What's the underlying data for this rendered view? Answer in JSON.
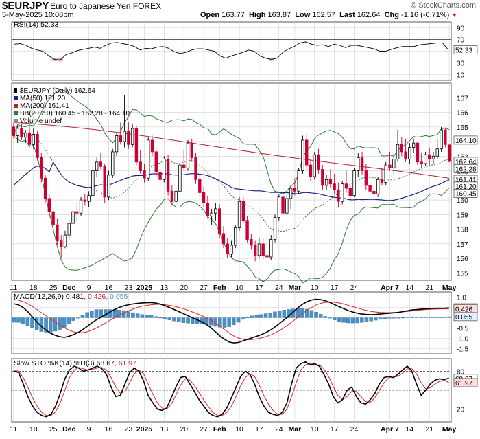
{
  "header": {
    "symbol": "$EURJPY",
    "name": "Euro to Japanese Yen FOREX",
    "date": "5-May-2025 10:08pm",
    "brand": "© StockCharts.com",
    "open_label": "Open",
    "open": "163.77",
    "high_label": "High",
    "high": "163.87",
    "low_label": "Low",
    "low": "162.57",
    "last_label": "Last",
    "last": "162.64",
    "chg_label": "Chg",
    "chg": "-1.16 (-0.71%)",
    "chg_icon": "down-triangle-icon"
  },
  "colors": {
    "up": "#000000",
    "down": "#cc0033",
    "ma50": "#1a237e",
    "ma200": "#b0243a",
    "bb": "#2e7d32",
    "macd_hist": "#4a90c4",
    "signal": "#e02020",
    "grid": "#cfcfcf"
  },
  "chart_data": [
    {
      "type": "line",
      "title": "RSI(14) 52.33",
      "ylim": [
        0,
        100
      ],
      "ticks": [
        90,
        70,
        50,
        30,
        10
      ],
      "reference_lines": [
        70,
        30
      ],
      "last_value": "52.33",
      "series": [
        {
          "values": [
            62,
            63,
            60,
            55,
            52,
            50,
            42,
            36,
            35,
            44,
            47,
            51,
            53,
            55,
            57,
            55,
            60,
            64,
            65,
            63,
            61,
            58,
            52,
            55,
            54,
            57,
            58,
            55,
            49,
            46,
            48,
            52,
            54,
            54,
            52,
            50,
            42,
            38,
            42,
            45,
            48,
            52,
            50,
            42,
            38,
            36,
            38,
            48,
            54,
            58,
            64,
            66,
            62,
            60,
            61,
            58,
            62,
            60,
            56,
            60,
            60,
            58,
            56,
            54,
            50,
            50,
            53,
            56,
            58,
            58,
            58,
            61,
            62,
            63,
            64,
            64,
            52
          ]
        }
      ]
    },
    {
      "type": "candlestick",
      "title": "$EURJPY (Daily) 162.64",
      "legend": [
        "MA(50) 161.20",
        "MA(200) 161.41",
        "BB(20,2.0) 160.45 - 162.28 - 164.10",
        "Volume undef"
      ],
      "x_tick_labels": [
        "11",
        "18",
        "25",
        "Dec",
        "9",
        "16",
        "23",
        "2025",
        "13",
        "20",
        "27",
        "Feb",
        "10",
        "17",
        "24",
        "Mar",
        "10",
        "17",
        "24",
        "Apr 7",
        "14",
        "21",
        "May"
      ],
      "x_tick_index": [
        0,
        5,
        10,
        14,
        19,
        24,
        29,
        33,
        38,
        43,
        48,
        52,
        57,
        62,
        67,
        71,
        76,
        81,
        86,
        95,
        100,
        105,
        110
      ],
      "ylim": [
        154.5,
        168
      ],
      "ticks": [
        155,
        156,
        157,
        158,
        159,
        160,
        161,
        162,
        163,
        164,
        165,
        166,
        167
      ],
      "price_labels": {
        "bb_upper": "164.10",
        "last": "162.64",
        "bb_mid": "162.28",
        "ma200": "161.41",
        "ma50": "161.20",
        "bb_lower": "160.45"
      },
      "ohlc": [
        [
          165.0,
          165.3,
          164.2,
          164.4
        ],
        [
          164.4,
          165.1,
          163.9,
          164.9
        ],
        [
          164.9,
          165.2,
          164.1,
          164.3
        ],
        [
          164.3,
          164.8,
          163.9,
          164.6
        ],
        [
          164.6,
          165.0,
          163.6,
          163.8
        ],
        [
          163.8,
          164.9,
          163.5,
          164.5
        ],
        [
          164.5,
          164.7,
          162.7,
          162.9
        ],
        [
          162.9,
          163.2,
          161.2,
          161.5
        ],
        [
          161.5,
          161.7,
          159.8,
          160.1
        ],
        [
          160.1,
          160.4,
          158.8,
          159.2
        ],
        [
          159.2,
          159.5,
          157.9,
          158.3
        ],
        [
          158.3,
          158.7,
          156.9,
          157.2
        ],
        [
          157.2,
          157.6,
          156.0,
          156.8
        ],
        [
          156.8,
          157.9,
          156.7,
          157.6
        ],
        [
          157.6,
          158.6,
          157.3,
          158.4
        ],
        [
          158.4,
          159.4,
          158.2,
          159.2
        ],
        [
          159.2,
          159.8,
          158.6,
          159.1
        ],
        [
          159.1,
          160.2,
          158.9,
          160.0
        ],
        [
          160.0,
          160.4,
          159.6,
          159.9
        ],
        [
          159.9,
          160.6,
          159.5,
          160.3
        ],
        [
          160.3,
          162.3,
          160.1,
          162.0
        ],
        [
          162.0,
          162.9,
          161.6,
          162.6
        ],
        [
          162.6,
          163.2,
          162.1,
          162.3
        ],
        [
          162.3,
          162.5,
          159.8,
          160.2
        ],
        [
          160.2,
          162.0,
          160.0,
          161.7
        ],
        [
          161.7,
          163.5,
          161.5,
          163.3
        ],
        [
          163.3,
          164.6,
          163.0,
          164.4
        ],
        [
          164.4,
          165.3,
          163.8,
          164.0
        ],
        [
          164.0,
          167.2,
          163.6,
          164.7
        ],
        [
          164.7,
          165.3,
          163.5,
          163.8
        ],
        [
          163.8,
          165.2,
          163.6,
          164.9
        ],
        [
          164.9,
          165.1,
          162.4,
          162.6
        ],
        [
          162.6,
          163.4,
          161.8,
          162.0
        ],
        [
          162.0,
          162.5,
          161.2,
          161.5
        ],
        [
          161.5,
          164.3,
          161.3,
          164.1
        ],
        [
          164.1,
          164.4,
          163.0,
          163.3
        ],
        [
          163.3,
          163.5,
          161.6,
          161.9
        ],
        [
          161.9,
          162.4,
          161.1,
          161.4
        ],
        [
          161.4,
          163.0,
          161.2,
          162.8
        ],
        [
          162.8,
          163.1,
          160.3,
          160.6
        ],
        [
          160.6,
          161.0,
          159.6,
          159.9
        ],
        [
          159.9,
          160.8,
          159.7,
          160.6
        ],
        [
          160.6,
          162.6,
          160.4,
          162.4
        ],
        [
          162.4,
          163.4,
          162.0,
          162.2
        ],
        [
          162.2,
          164.1,
          162.0,
          163.9
        ],
        [
          163.9,
          164.2,
          162.6,
          162.9
        ],
        [
          162.9,
          163.2,
          161.1,
          161.4
        ],
        [
          161.4,
          161.7,
          160.2,
          160.5
        ],
        [
          160.5,
          160.9,
          159.5,
          159.8
        ],
        [
          159.8,
          160.3,
          158.7,
          158.9
        ],
        [
          158.9,
          159.4,
          158.3,
          159.1
        ],
        [
          159.1,
          159.8,
          158.6,
          159.4
        ],
        [
          159.4,
          159.7,
          157.4,
          157.7
        ],
        [
          157.7,
          158.2,
          156.7,
          157.0
        ],
        [
          157.0,
          157.4,
          156.0,
          156.3
        ],
        [
          156.3,
          157.2,
          156.1,
          156.9
        ],
        [
          156.9,
          158.3,
          156.7,
          158.1
        ],
        [
          158.1,
          160.2,
          157.9,
          159.9
        ],
        [
          159.9,
          160.2,
          158.4,
          158.6
        ],
        [
          158.6,
          158.9,
          157.1,
          157.3
        ],
        [
          157.3,
          157.7,
          156.6,
          156.9
        ],
        [
          156.9,
          157.2,
          155.8,
          156.2
        ],
        [
          156.2,
          157.4,
          156.0,
          157.0
        ],
        [
          157.0,
          157.4,
          155.9,
          156.2
        ],
        [
          156.2,
          156.8,
          155.0,
          156.1
        ],
        [
          156.1,
          157.6,
          155.9,
          157.3
        ],
        [
          157.3,
          159.0,
          157.1,
          158.8
        ],
        [
          158.8,
          160.4,
          158.6,
          160.2
        ],
        [
          160.2,
          160.6,
          158.8,
          159.1
        ],
        [
          159.1,
          160.4,
          158.9,
          160.1
        ],
        [
          160.1,
          161.0,
          159.4,
          160.8
        ],
        [
          160.8,
          161.5,
          160.3,
          160.6
        ],
        [
          160.6,
          162.2,
          160.4,
          162.0
        ],
        [
          162.0,
          164.4,
          161.8,
          164.1
        ],
        [
          164.1,
          164.5,
          162.1,
          162.4
        ],
        [
          162.4,
          162.8,
          161.3,
          161.6
        ],
        [
          161.6,
          163.3,
          161.4,
          163.1
        ],
        [
          163.1,
          163.5,
          161.8,
          162.1
        ],
        [
          162.1,
          162.4,
          160.7,
          161.0
        ],
        [
          161.0,
          161.7,
          160.7,
          161.4
        ],
        [
          161.4,
          162.1,
          160.8,
          161.1
        ],
        [
          161.1,
          161.8,
          160.4,
          160.7
        ],
        [
          160.7,
          161.2,
          159.5,
          159.9
        ],
        [
          159.9,
          161.3,
          159.7,
          161.1
        ],
        [
          161.1,
          162.0,
          160.5,
          160.8
        ],
        [
          160.8,
          161.0,
          160.0,
          160.3
        ],
        [
          160.3,
          162.2,
          160.2,
          162.0
        ],
        [
          162.0,
          163.2,
          161.6,
          162.9
        ],
        [
          162.9,
          163.3,
          161.7,
          162.0
        ],
        [
          162.0,
          162.5,
          160.7,
          161.0
        ],
        [
          161.0,
          161.5,
          160.2,
          160.6
        ],
        [
          160.6,
          161.0,
          159.7,
          160.4
        ],
        [
          160.4,
          161.6,
          160.2,
          161.4
        ],
        [
          161.4,
          162.2,
          161.0,
          161.2
        ],
        [
          161.2,
          162.6,
          161.0,
          162.4
        ],
        [
          162.4,
          163.3,
          162.0,
          162.2
        ],
        [
          162.2,
          163.1,
          161.8,
          162.8
        ],
        [
          162.8,
          164.8,
          162.6,
          163.8
        ],
        [
          163.8,
          164.3,
          163.0,
          163.3
        ],
        [
          163.3,
          164.2,
          162.6,
          162.8
        ],
        [
          162.8,
          163.9,
          162.5,
          163.6
        ],
        [
          163.6,
          164.2,
          163.2,
          163.9
        ],
        [
          163.9,
          164.0,
          162.4,
          162.6
        ],
        [
          162.6,
          163.2,
          162.2,
          162.5
        ],
        [
          162.5,
          163.3,
          162.3,
          163.1
        ],
        [
          163.1,
          163.6,
          162.4,
          162.8
        ],
        [
          162.8,
          163.3,
          162.5,
          163.0
        ],
        [
          163.0,
          164.2,
          162.8,
          163.5
        ],
        [
          163.5,
          165.0,
          163.3,
          164.8
        ],
        [
          164.8,
          164.9,
          163.6,
          163.8
        ],
        [
          163.77,
          163.87,
          162.57,
          162.64
        ]
      ]
    },
    {
      "type": "histogram+line",
      "title": "MACD(12,26,9) 0.481, 0.426, 0.055",
      "values_text": {
        "macd": "0.481",
        "signal": "0.426",
        "hist": "0.055"
      },
      "ylim": [
        -1.75,
        1.25
      ],
      "ticks": [
        "1.0",
        "0.5",
        "0.0",
        "-0.5",
        "-1.0",
        "-1.5"
      ],
      "macd": [
        0.68,
        0.62,
        0.5,
        0.3,
        0.05,
        -0.2,
        -0.42,
        -0.6,
        -0.75,
        -0.85,
        -0.92,
        -0.95,
        -0.9,
        -0.82,
        -0.72,
        -0.58,
        -0.42,
        -0.25,
        -0.1,
        0.02,
        0.15,
        0.28,
        0.4,
        0.5,
        0.58,
        0.63,
        0.67,
        0.7,
        0.72,
        0.73,
        0.74,
        0.71,
        0.66,
        0.58,
        0.49,
        0.4,
        0.3,
        0.2,
        0.1,
        0.0,
        -0.1,
        -0.2,
        -0.32,
        -0.48,
        -0.68,
        -0.88,
        -1.05,
        -1.18,
        -1.22,
        -1.2,
        -1.12,
        -1.05,
        -0.97,
        -0.9,
        -0.82,
        -0.72,
        -0.6,
        -0.45,
        -0.28,
        -0.1,
        0.08,
        0.28,
        0.48,
        0.65,
        0.78,
        0.86,
        0.9,
        0.88,
        0.82,
        0.74,
        0.64,
        0.54,
        0.44,
        0.35,
        0.28,
        0.22,
        0.18,
        0.16,
        0.15,
        0.16,
        0.18,
        0.2,
        0.22,
        0.24,
        0.26,
        0.3,
        0.34,
        0.38,
        0.4,
        0.42,
        0.44,
        0.45,
        0.46,
        0.46,
        0.46,
        0.48
      ],
      "signal": [
        0.9,
        0.85,
        0.78,
        0.68,
        0.55,
        0.4,
        0.25,
        0.1,
        -0.05,
        -0.2,
        -0.35,
        -0.48,
        -0.6,
        -0.68,
        -0.72,
        -0.72,
        -0.68,
        -0.6,
        -0.5,
        -0.38,
        -0.25,
        -0.12,
        0.0,
        0.12,
        0.23,
        0.33,
        0.42,
        0.5,
        0.56,
        0.6,
        0.63,
        0.65,
        0.65,
        0.63,
        0.6,
        0.56,
        0.5,
        0.44,
        0.36,
        0.28,
        0.2,
        0.1,
        0.0,
        -0.12,
        -0.26,
        -0.42,
        -0.58,
        -0.74,
        -0.88,
        -0.98,
        -1.04,
        -1.07,
        -1.06,
        -1.03,
        -0.98,
        -0.92,
        -0.84,
        -0.74,
        -0.62,
        -0.48,
        -0.32,
        -0.15,
        0.02,
        0.2,
        0.36,
        0.5,
        0.62,
        0.7,
        0.75,
        0.76,
        0.75,
        0.72,
        0.67,
        0.6,
        0.54,
        0.47,
        0.41,
        0.36,
        0.31,
        0.28,
        0.26,
        0.25,
        0.25,
        0.26,
        0.27,
        0.29,
        0.31,
        0.33,
        0.36,
        0.38,
        0.4,
        0.41,
        0.42,
        0.43,
        0.43,
        0.43
      ]
    },
    {
      "type": "line",
      "title": "Slow STO %K(14) %D(3) 68.67, 61.97",
      "values_text": {
        "k": "68.67",
        "d": "61.97"
      },
      "ylim": [
        0,
        100
      ],
      "ticks": [
        80,
        50,
        20
      ],
      "reference_lines": [
        80,
        50,
        20
      ],
      "k": [
        80,
        78,
        60,
        40,
        25,
        15,
        10,
        8,
        12,
        25,
        45,
        68,
        82,
        88,
        85,
        80,
        82,
        85,
        88,
        84,
        75,
        55,
        40,
        42,
        60,
        78,
        85,
        80,
        65,
        42,
        30,
        20,
        18,
        22,
        38,
        55,
        70,
        72,
        60,
        48,
        35,
        25,
        15,
        10,
        8,
        12,
        22,
        38,
        55,
        72,
        80,
        75,
        60,
        40,
        25,
        15,
        12,
        10,
        15,
        30,
        60,
        85,
        92,
        95,
        90,
        92,
        88,
        75,
        60,
        40,
        30,
        35,
        50,
        55,
        40,
        30,
        28,
        35,
        45,
        60,
        70,
        72,
        70,
        75,
        82,
        88,
        80,
        60,
        42,
        50,
        60,
        66,
        68,
        67,
        69
      ],
      "d": [
        82,
        80,
        70,
        55,
        38,
        25,
        15,
        10,
        10,
        16,
        30,
        50,
        70,
        82,
        86,
        84,
        82,
        83,
        85,
        86,
        82,
        70,
        55,
        45,
        48,
        62,
        76,
        82,
        76,
        60,
        44,
        30,
        22,
        20,
        28,
        42,
        58,
        68,
        66,
        58,
        46,
        35,
        24,
        15,
        10,
        10,
        15,
        25,
        40,
        57,
        70,
        76,
        72,
        58,
        42,
        28,
        18,
        12,
        12,
        20,
        40,
        62,
        82,
        90,
        92,
        90,
        90,
        84,
        72,
        56,
        42,
        35,
        40,
        48,
        48,
        40,
        32,
        31,
        38,
        50,
        62,
        70,
        71,
        72,
        77,
        84,
        84,
        76,
        62,
        52,
        54,
        60,
        64,
        66,
        62
      ]
    }
  ]
}
